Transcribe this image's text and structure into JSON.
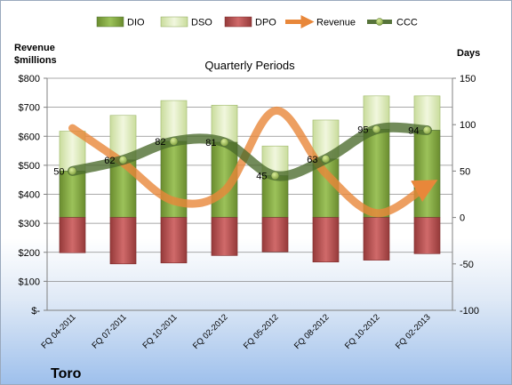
{
  "company": "Toro",
  "chart_data": {
    "type": "bar",
    "title": "Quarterly Periods",
    "y_left_label_lines": [
      "Revenue",
      "$millions"
    ],
    "y_right_label": "Days",
    "categories": [
      "FQ 04-2011",
      "FQ 07-2011",
      "FQ 10-2011",
      "FQ 02-2012",
      "FQ 05-2012",
      "FQ 08-2012",
      "FQ 10-2012",
      "FQ 02-2013"
    ],
    "left_axis": {
      "range": [
        0,
        800
      ],
      "ticks": [
        0,
        100,
        200,
        300,
        400,
        500,
        600,
        700,
        800
      ],
      "tick_labels": [
        "$-",
        "$100",
        "$200",
        "$300",
        "$400",
        "$500",
        "$600",
        "$700",
        "$800"
      ]
    },
    "right_axis": {
      "range": [
        -100,
        150
      ],
      "ticks": [
        -100,
        -50,
        0,
        50,
        100,
        150
      ],
      "tick_labels": [
        "-100",
        "-50",
        "0",
        "50",
        "100",
        "150"
      ]
    },
    "series": [
      {
        "name": "DIO",
        "kind": "stacked-bar",
        "axis": "right",
        "color": "#7a9e3a",
        "values": [
          50,
          62,
          82,
          81,
          45,
          63,
          95,
          94
        ]
      },
      {
        "name": "DSO",
        "kind": "stacked-bar",
        "axis": "right",
        "color": "#e0edc0",
        "values": [
          43,
          48,
          44,
          40,
          32,
          42,
          36,
          37
        ]
      },
      {
        "name": "DPO",
        "kind": "negative-bar",
        "axis": "right",
        "color": "#b84c4c",
        "values": [
          -38,
          -50,
          -49,
          -41,
          -37,
          -48,
          -46,
          -39
        ]
      },
      {
        "name": "Revenue",
        "kind": "line",
        "axis": "left",
        "color": "#e8873a",
        "values": [
          628,
          508,
          377,
          412,
          688,
          472,
          335,
          430
        ]
      },
      {
        "name": "CCC",
        "kind": "line",
        "axis": "right",
        "color": "#56733a",
        "values": [
          50,
          62,
          82,
          81,
          45,
          63,
          95,
          94
        ]
      }
    ],
    "data_labels": [
      "50",
      "62",
      "82",
      "81",
      "45",
      "63",
      "95",
      "94"
    ],
    "legend_position": "top",
    "grid": true
  }
}
